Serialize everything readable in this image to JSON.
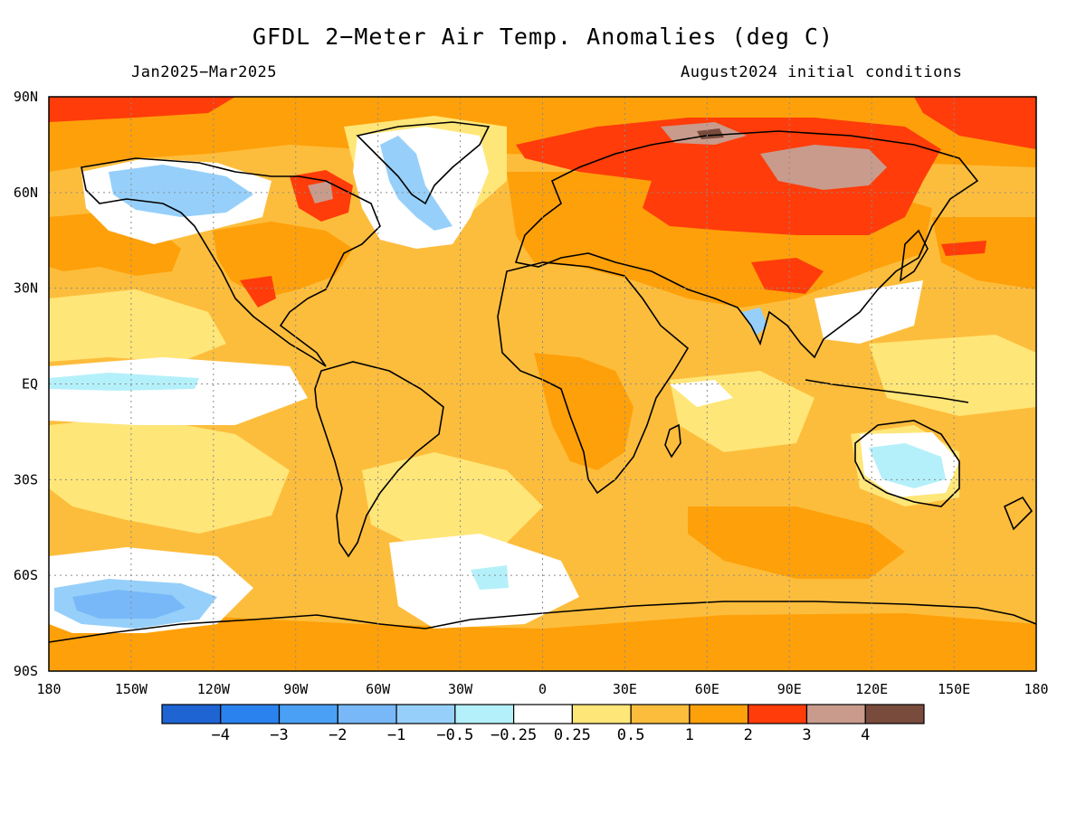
{
  "map": {
    "title": "GFDL 2−Meter Air Temp. Anomalies (deg C)",
    "period": "Jan2025−Mar2025",
    "initial_conditions": "August2024 initial conditions",
    "lat_labels": [
      "90N",
      "60N",
      "30N",
      "EQ",
      "30S",
      "60S",
      "90S"
    ],
    "lon_labels": [
      "180",
      "150W",
      "120W",
      "90W",
      "60W",
      "30W",
      "0",
      "30E",
      "60E",
      "90E",
      "120E",
      "150E",
      "180"
    ],
    "background_color": "#fdbd3c"
  },
  "colorbar": {
    "colors": [
      "#1e64d2",
      "#2a82ef",
      "#4aa0f5",
      "#78b8f8",
      "#96d0fa",
      "#b4f0fa",
      "#ffffff",
      "#ffe678",
      "#fdbd3c",
      "#fea00a",
      "#ff3c0a",
      "#c89b8c",
      "#784b3c"
    ],
    "labels": [
      "−4",
      "−3",
      "−2",
      "−1",
      "−0.5",
      "−0.25",
      "0.25",
      "0.5",
      "1",
      "2",
      "3",
      "4"
    ]
  }
}
